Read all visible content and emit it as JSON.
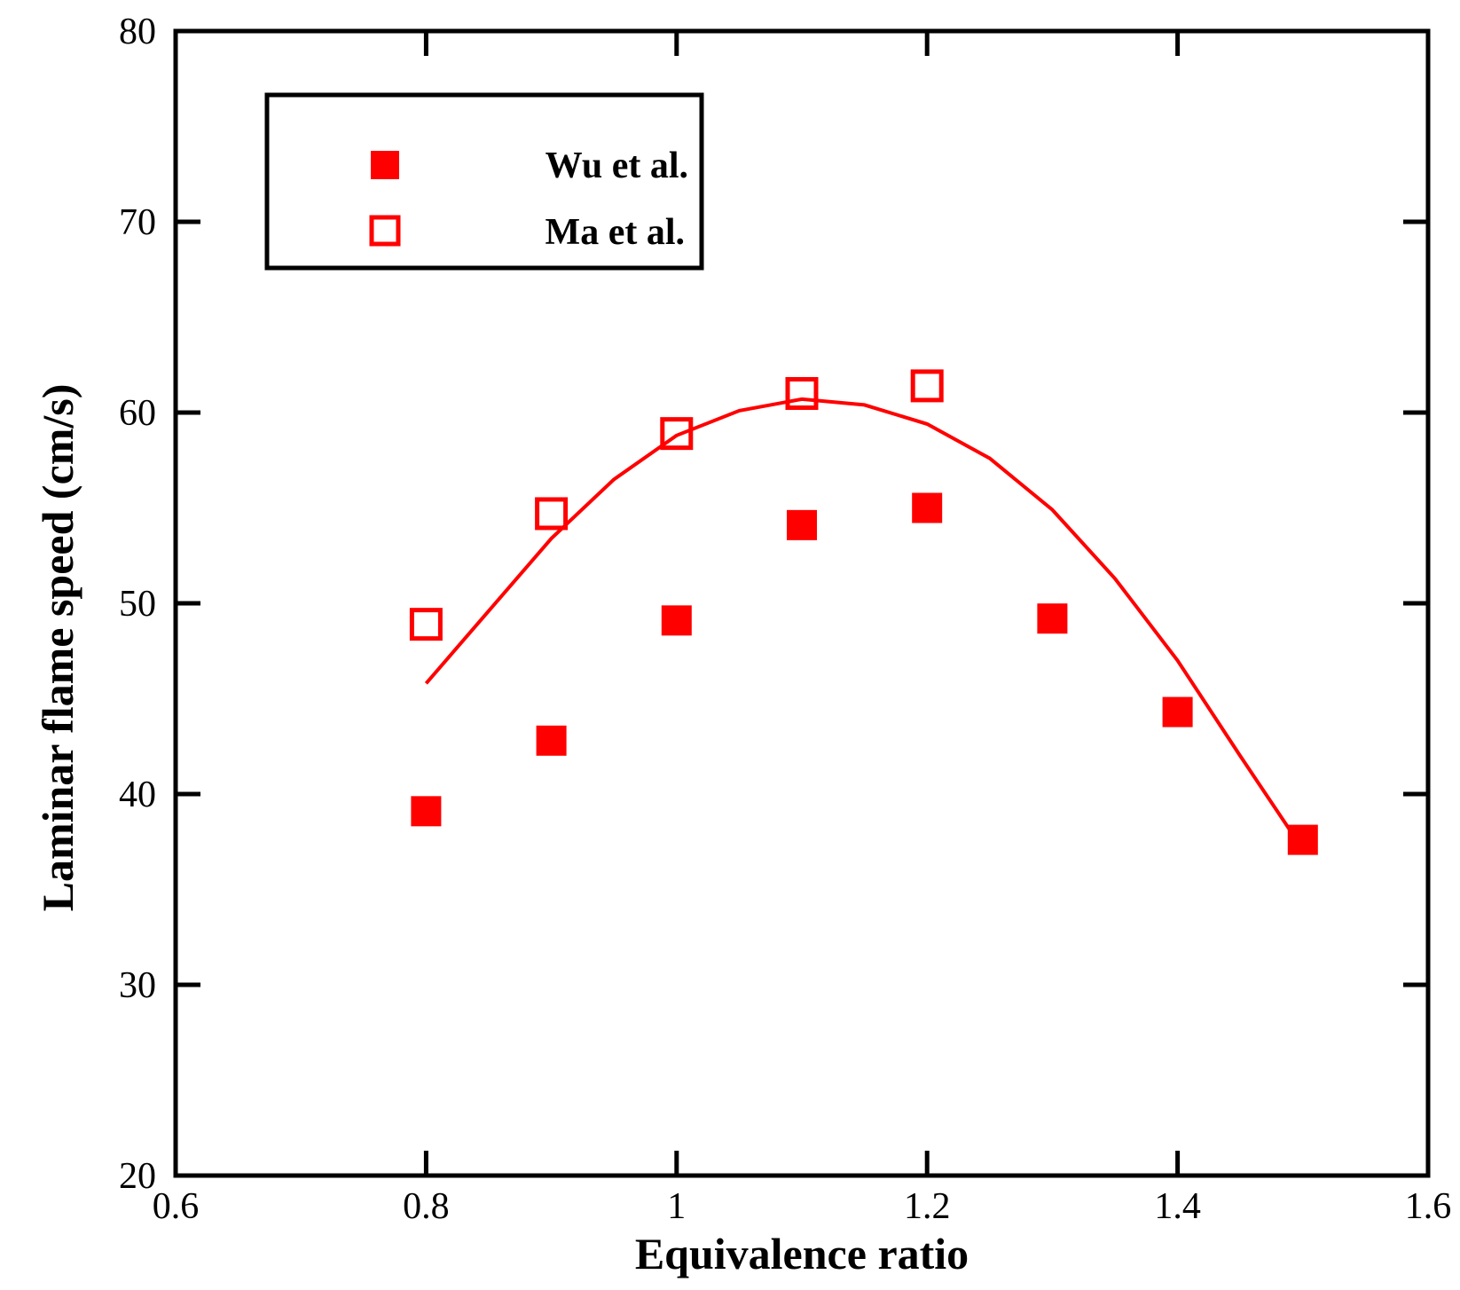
{
  "chart_data": {
    "type": "scatter",
    "title": "",
    "xlabel": "Equivalence ratio",
    "ylabel": "Laminar flame speed (cm/s)",
    "xlim": [
      0.6,
      1.6
    ],
    "ylim": [
      20,
      80
    ],
    "xticks": [
      0.6,
      0.8,
      1.0,
      1.2,
      1.4,
      1.6
    ],
    "xtick_labels": [
      "0.6",
      "0.8",
      "1",
      "1.2",
      "1.4",
      "1.6"
    ],
    "yticks": [
      20,
      30,
      40,
      50,
      60,
      70,
      80
    ],
    "ytick_labels": [
      "20",
      "30",
      "40",
      "50",
      "60",
      "70",
      "80"
    ],
    "grid": false,
    "legend_position": "top-left",
    "color": "#ff0000",
    "series": [
      {
        "name": "Wu et al.",
        "marker": "filled-square",
        "x": [
          0.8,
          0.9,
          1.0,
          1.1,
          1.2,
          1.3,
          1.4,
          1.5
        ],
        "y": [
          39.1,
          42.8,
          49.1,
          54.1,
          55.0,
          49.2,
          44.3,
          37.6
        ]
      },
      {
        "name": "Ma et al.",
        "marker": "open-square",
        "x": [
          0.8,
          0.9,
          1.0,
          1.1,
          1.2
        ],
        "y": [
          48.9,
          54.7,
          58.9,
          61.0,
          61.4
        ]
      },
      {
        "marker": "line",
        "x": [
          0.8,
          0.85,
          0.9,
          0.95,
          1.0,
          1.05,
          1.1,
          1.15,
          1.2,
          1.25,
          1.3,
          1.35,
          1.4,
          1.45,
          1.5
        ],
        "y": [
          45.8,
          49.6,
          53.4,
          56.5,
          58.8,
          60.1,
          60.7,
          60.4,
          59.4,
          57.6,
          54.9,
          51.3,
          47.0,
          42.0,
          37.1
        ]
      }
    ]
  }
}
